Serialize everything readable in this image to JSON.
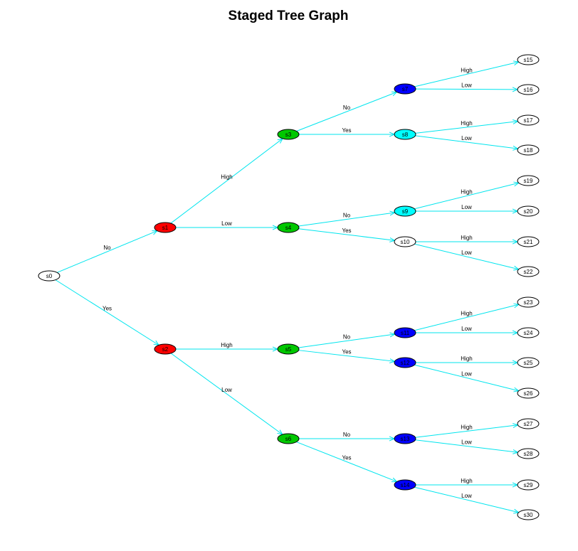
{
  "title": "Staged Tree Graph",
  "colors": {
    "edge": "#00e5ee",
    "stage_red": "#ff0000",
    "stage_green": "#00c800",
    "stage_blue": "#0000ff",
    "stage_cyan": "#00ffff",
    "stage_white": "#ffffff"
  },
  "nodes": [
    {
      "id": "s0",
      "label": "s0",
      "fill": "stage_white"
    },
    {
      "id": "s1",
      "label": "s1",
      "fill": "stage_red"
    },
    {
      "id": "s2",
      "label": "s2",
      "fill": "stage_red"
    },
    {
      "id": "s3",
      "label": "s3",
      "fill": "stage_green"
    },
    {
      "id": "s4",
      "label": "s4",
      "fill": "stage_green"
    },
    {
      "id": "s5",
      "label": "s5",
      "fill": "stage_green"
    },
    {
      "id": "s6",
      "label": "s6",
      "fill": "stage_green"
    },
    {
      "id": "s7",
      "label": "s7",
      "fill": "stage_blue"
    },
    {
      "id": "s8",
      "label": "s8",
      "fill": "stage_cyan"
    },
    {
      "id": "s9",
      "label": "s9",
      "fill": "stage_cyan"
    },
    {
      "id": "s10",
      "label": "s10",
      "fill": "stage_white"
    },
    {
      "id": "s11",
      "label": "s11",
      "fill": "stage_blue"
    },
    {
      "id": "s12",
      "label": "s12",
      "fill": "stage_blue"
    },
    {
      "id": "s13",
      "label": "s13",
      "fill": "stage_blue"
    },
    {
      "id": "s14",
      "label": "s14",
      "fill": "stage_blue"
    },
    {
      "id": "s15",
      "label": "s15",
      "fill": "stage_white"
    },
    {
      "id": "s16",
      "label": "s16",
      "fill": "stage_white"
    },
    {
      "id": "s17",
      "label": "s17",
      "fill": "stage_white"
    },
    {
      "id": "s18",
      "label": "s18",
      "fill": "stage_white"
    },
    {
      "id": "s19",
      "label": "s19",
      "fill": "stage_white"
    },
    {
      "id": "s20",
      "label": "s20",
      "fill": "stage_white"
    },
    {
      "id": "s21",
      "label": "s21",
      "fill": "stage_white"
    },
    {
      "id": "s22",
      "label": "s22",
      "fill": "stage_white"
    },
    {
      "id": "s23",
      "label": "s23",
      "fill": "stage_white"
    },
    {
      "id": "s24",
      "label": "s24",
      "fill": "stage_white"
    },
    {
      "id": "s25",
      "label": "s25",
      "fill": "stage_white"
    },
    {
      "id": "s26",
      "label": "s26",
      "fill": "stage_white"
    },
    {
      "id": "s27",
      "label": "s27",
      "fill": "stage_white"
    },
    {
      "id": "s28",
      "label": "s28",
      "fill": "stage_white"
    },
    {
      "id": "s29",
      "label": "s29",
      "fill": "stage_white"
    },
    {
      "id": "s30",
      "label": "s30",
      "fill": "stage_white"
    }
  ],
  "edges": [
    {
      "from": "s0",
      "to": "s1",
      "label": "No"
    },
    {
      "from": "s0",
      "to": "s2",
      "label": "Yes"
    },
    {
      "from": "s1",
      "to": "s3",
      "label": "High"
    },
    {
      "from": "s1",
      "to": "s4",
      "label": "Low"
    },
    {
      "from": "s2",
      "to": "s5",
      "label": "High"
    },
    {
      "from": "s2",
      "to": "s6",
      "label": "Low"
    },
    {
      "from": "s3",
      "to": "s7",
      "label": "No"
    },
    {
      "from": "s3",
      "to": "s8",
      "label": "Yes"
    },
    {
      "from": "s4",
      "to": "s9",
      "label": "No"
    },
    {
      "from": "s4",
      "to": "s10",
      "label": "Yes"
    },
    {
      "from": "s5",
      "to": "s11",
      "label": "No"
    },
    {
      "from": "s5",
      "to": "s12",
      "label": "Yes"
    },
    {
      "from": "s6",
      "to": "s13",
      "label": "No"
    },
    {
      "from": "s6",
      "to": "s14",
      "label": "Yes"
    },
    {
      "from": "s7",
      "to": "s15",
      "label": "High"
    },
    {
      "from": "s7",
      "to": "s16",
      "label": "Low"
    },
    {
      "from": "s8",
      "to": "s17",
      "label": "High"
    },
    {
      "from": "s8",
      "to": "s18",
      "label": "Low"
    },
    {
      "from": "s9",
      "to": "s19",
      "label": "High"
    },
    {
      "from": "s9",
      "to": "s20",
      "label": "Low"
    },
    {
      "from": "s10",
      "to": "s21",
      "label": "High"
    },
    {
      "from": "s10",
      "to": "s22",
      "label": "Low"
    },
    {
      "from": "s11",
      "to": "s23",
      "label": "High"
    },
    {
      "from": "s11",
      "to": "s24",
      "label": "Low"
    },
    {
      "from": "s12",
      "to": "s25",
      "label": "High"
    },
    {
      "from": "s12",
      "to": "s26",
      "label": "Low"
    },
    {
      "from": "s13",
      "to": "s27",
      "label": "High"
    },
    {
      "from": "s13",
      "to": "s28",
      "label": "Low"
    },
    {
      "from": "s14",
      "to": "s29",
      "label": "High"
    },
    {
      "from": "s14",
      "to": "s30",
      "label": "Low"
    }
  ]
}
